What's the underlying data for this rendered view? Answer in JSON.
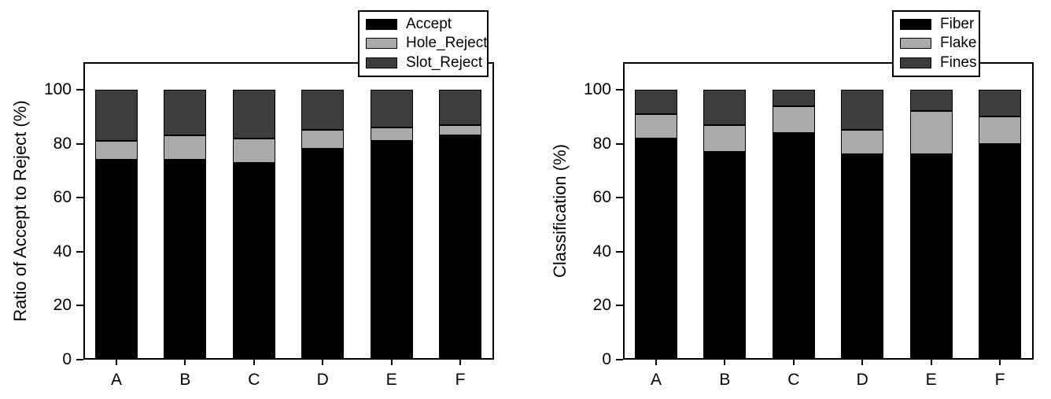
{
  "figure": {
    "background": "#ffffff",
    "frame_color": "#000000"
  },
  "chart_data": [
    {
      "type": "bar",
      "stacked": true,
      "title": "",
      "xlabel": "",
      "ylabel": "Ratio of Accept to Reject (%)",
      "ylim": [
        0,
        100
      ],
      "yticks": [
        0,
        20,
        40,
        60,
        80,
        100
      ],
      "grid": false,
      "legend_position": "top-right",
      "categories": [
        "A",
        "B",
        "C",
        "D",
        "E",
        "F"
      ],
      "series": [
        {
          "name": "Accept",
          "color": "#000000",
          "values": [
            74,
            74,
            73,
            78,
            81,
            83
          ]
        },
        {
          "name": "Hole_Reject",
          "color": "#aaaaaa",
          "values": [
            7,
            9,
            9,
            7,
            5,
            4
          ]
        },
        {
          "name": "Slot_Reject",
          "color": "#3d3d3d",
          "values": [
            19,
            17,
            18,
            15,
            14,
            13
          ]
        }
      ]
    },
    {
      "type": "bar",
      "stacked": true,
      "title": "",
      "xlabel": "",
      "ylabel": "Classification (%)",
      "ylim": [
        0,
        100
      ],
      "yticks": [
        0,
        20,
        40,
        60,
        80,
        100
      ],
      "grid": false,
      "legend_position": "top-right",
      "categories": [
        "A",
        "B",
        "C",
        "D",
        "E",
        "F"
      ],
      "series": [
        {
          "name": "Fiber",
          "color": "#000000",
          "values": [
            82,
            77,
            84,
            76,
            76,
            80
          ]
        },
        {
          "name": "Flake",
          "color": "#aaaaaa",
          "values": [
            9,
            10,
            10,
            9,
            16,
            10
          ]
        },
        {
          "name": "Fines",
          "color": "#3d3d3d",
          "values": [
            9,
            13,
            6,
            15,
            8,
            10
          ]
        }
      ]
    }
  ]
}
